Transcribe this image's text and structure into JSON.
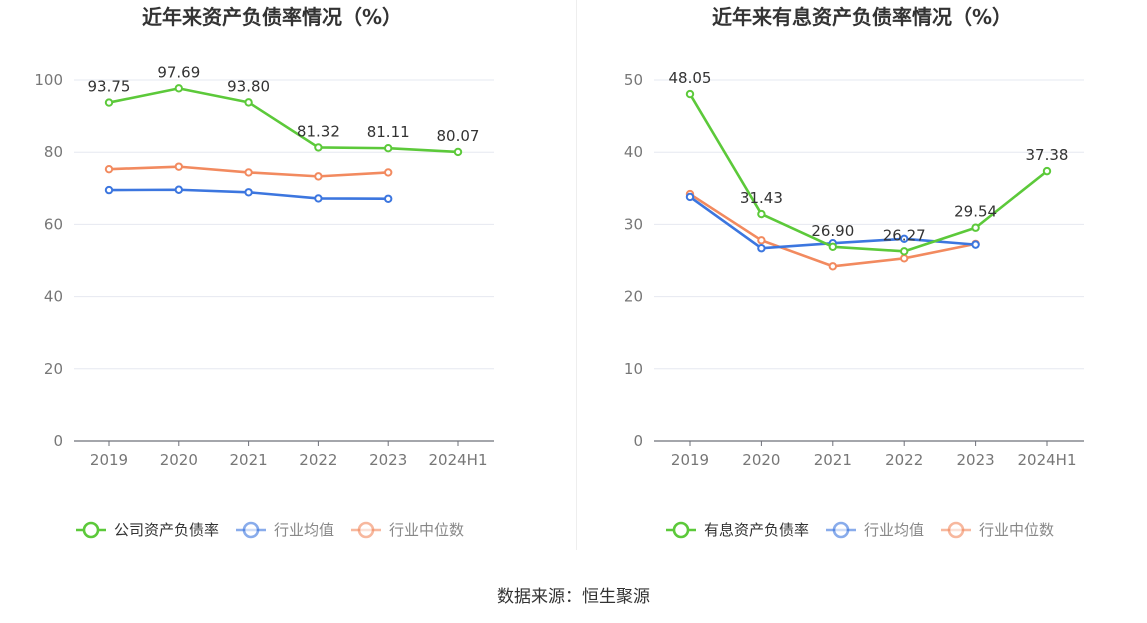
{
  "chart_data": [
    {
      "type": "line",
      "title": "近年来资产负债率情况（%）",
      "categories": [
        "2019",
        "2020",
        "2021",
        "2022",
        "2023",
        "2024H1"
      ],
      "ylim": [
        0,
        100
      ],
      "yticks": [
        0,
        20,
        40,
        60,
        80,
        100
      ],
      "grid": true,
      "legend_position": "bottom",
      "series": [
        {
          "name": "公司资产负债率",
          "color": "#5cc93a",
          "values": [
            93.75,
            97.69,
            93.8,
            81.32,
            81.11,
            80.07
          ],
          "labels": [
            "93.75",
            "97.69",
            "93.80",
            "81.32",
            "81.11",
            "80.07"
          ]
        },
        {
          "name": "行业均值",
          "color": "#3c76df",
          "values": [
            69.5,
            69.6,
            68.9,
            67.2,
            67.1,
            null
          ]
        },
        {
          "name": "行业中位数",
          "color": "#f28a5f",
          "values": [
            75.3,
            76.0,
            74.4,
            73.3,
            74.4,
            null
          ]
        }
      ]
    },
    {
      "type": "line",
      "title": "近年来有息资产负债率情况（%）",
      "categories": [
        "2019",
        "2020",
        "2021",
        "2022",
        "2023",
        "2024H1"
      ],
      "ylim": [
        0,
        50
      ],
      "yticks": [
        0,
        10,
        20,
        30,
        40,
        50
      ],
      "grid": true,
      "legend_position": "bottom",
      "series": [
        {
          "name": "有息资产负债率",
          "color": "#5cc93a",
          "values": [
            48.05,
            31.43,
            26.9,
            26.27,
            29.54,
            37.38
          ],
          "labels": [
            "48.05",
            "31.43",
            "26.90",
            "26.27",
            "29.54",
            "37.38"
          ]
        },
        {
          "name": "行业均值",
          "color": "#3c76df",
          "values": [
            33.8,
            26.7,
            27.4,
            28.0,
            27.2,
            null
          ]
        },
        {
          "name": "行业中位数",
          "color": "#f28a5f",
          "values": [
            34.2,
            27.8,
            24.2,
            25.3,
            27.3,
            null
          ]
        }
      ]
    }
  ],
  "source_text": "数据来源：恒生聚源"
}
